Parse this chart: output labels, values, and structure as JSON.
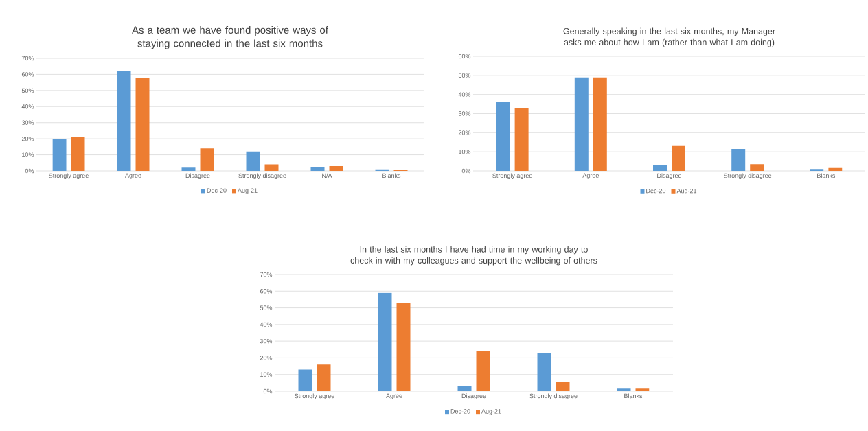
{
  "chart_data": [
    {
      "type": "bar",
      "title": "As a team we have found positive ways of staying connected in the last six months",
      "categories": [
        "Strongly agree",
        "Agree",
        "Disagree",
        "Strongly disagree",
        "N/A",
        "Blanks"
      ],
      "series": [
        {
          "name": "Dec-20",
          "color": "#5b9bd5",
          "values": [
            20,
            62,
            2,
            12,
            2.5,
            1
          ]
        },
        {
          "name": "Aug-21",
          "color": "#ed7d31",
          "values": [
            21,
            58,
            14,
            4,
            3,
            0.5
          ]
        }
      ],
      "ylim": [
        0,
        70
      ],
      "yticks": [
        {
          "value": 0,
          "label": "0%"
        },
        {
          "value": 10,
          "label": "10%"
        },
        {
          "value": 20,
          "label": "20%"
        },
        {
          "value": 30,
          "label": "30%"
        },
        {
          "value": 40,
          "label": "40%"
        },
        {
          "value": 50,
          "label": "50%"
        },
        {
          "value": 60,
          "label": "60%"
        },
        {
          "value": 70,
          "label": "70%"
        }
      ],
      "grid": "y",
      "legend": "bottom"
    },
    {
      "type": "bar",
      "title": "Generally speaking in the last six months, my Manager asks me about how I am (rather than what I am doing)",
      "categories": [
        "Strongly agree",
        "Agree",
        "Disagree",
        "Strongly disagree",
        "Blanks"
      ],
      "series": [
        {
          "name": "Dec-20",
          "color": "#5b9bd5",
          "values": [
            36,
            49,
            3,
            11.5,
            1
          ]
        },
        {
          "name": "Aug-21",
          "color": "#ed7d31",
          "values": [
            33,
            49,
            13,
            3.5,
            1.5
          ]
        }
      ],
      "ylim": [
        0,
        60
      ],
      "yticks": [
        {
          "value": 0,
          "label": "0%"
        },
        {
          "value": 10,
          "label": "10%"
        },
        {
          "value": 20,
          "label": "20%"
        },
        {
          "value": 30,
          "label": "30%"
        },
        {
          "value": 40,
          "label": "40%"
        },
        {
          "value": 50,
          "label": "50%"
        },
        {
          "value": 60,
          "label": "60%"
        }
      ],
      "grid": "y",
      "legend": "bottom"
    },
    {
      "type": "bar",
      "title": "In the last six months I have had time in my working day to check in with my colleagues and support the wellbeing of others",
      "categories": [
        "Strongly agree",
        "Agree",
        "Disagree",
        "Strongly disagree",
        "Blanks"
      ],
      "series": [
        {
          "name": "Dec-20",
          "color": "#5b9bd5",
          "values": [
            13,
            59,
            3,
            23,
            1.5
          ]
        },
        {
          "name": "Aug-21",
          "color": "#ed7d31",
          "values": [
            16,
            53,
            24,
            5.5,
            1.5
          ]
        }
      ],
      "ylim": [
        0,
        70
      ],
      "yticks": [
        {
          "value": 0,
          "label": "0%"
        },
        {
          "value": 10,
          "label": "10%"
        },
        {
          "value": 20,
          "label": "20%"
        },
        {
          "value": 30,
          "label": "30%"
        },
        {
          "value": 40,
          "label": "40%"
        },
        {
          "value": 50,
          "label": "50%"
        },
        {
          "value": 60,
          "label": "60%"
        },
        {
          "value": 70,
          "label": "70%"
        }
      ],
      "grid": "y",
      "legend": "bottom"
    }
  ]
}
